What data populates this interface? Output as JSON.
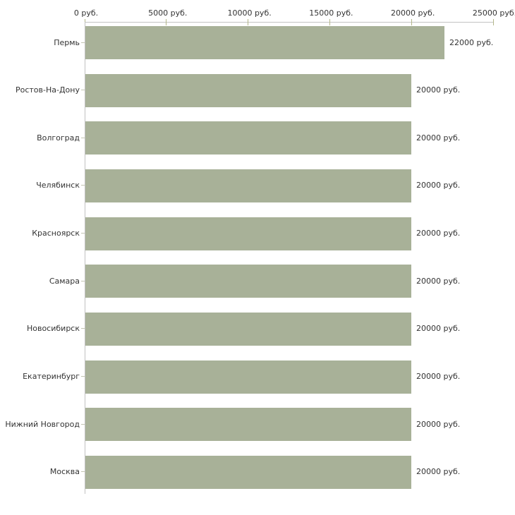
{
  "chart_data": {
    "type": "bar",
    "orientation": "horizontal",
    "title": "",
    "xlabel": "",
    "ylabel": "",
    "categories": [
      "Пермь",
      "Ростов-На-Дону",
      "Волгоград",
      "Челябинск",
      "Красноярск",
      "Самара",
      "Новосибирск",
      "Екатеринбург",
      "Нижний Новгород",
      "Москва"
    ],
    "values": [
      22000,
      20000,
      20000,
      20000,
      20000,
      20000,
      20000,
      20000,
      20000,
      20000
    ],
    "value_labels": [
      "22000 руб.",
      "20000 руб.",
      "20000 руб.",
      "20000 руб.",
      "20000 руб.",
      "20000 руб.",
      "20000 руб.",
      "20000 руб.",
      "20000 руб.",
      "20000 руб."
    ],
    "x_ticks": [
      0,
      5000,
      10000,
      15000,
      20000,
      25000
    ],
    "x_tick_labels": [
      "0 руб.",
      "5000 руб.",
      "10000 руб.",
      "15000 руб.",
      "20000 руб.",
      "25000 руб."
    ],
    "xlim": [
      0,
      25000
    ],
    "x_axis_position": "top",
    "grid": false,
    "legend": "none",
    "colors": {
      "bar": "#a8b198",
      "axis_line": "#c2c2c2",
      "axis_tick": "#b4b78a",
      "category_tick": "#c3c5b2",
      "text": "#333333",
      "background": "#ffffff"
    }
  }
}
